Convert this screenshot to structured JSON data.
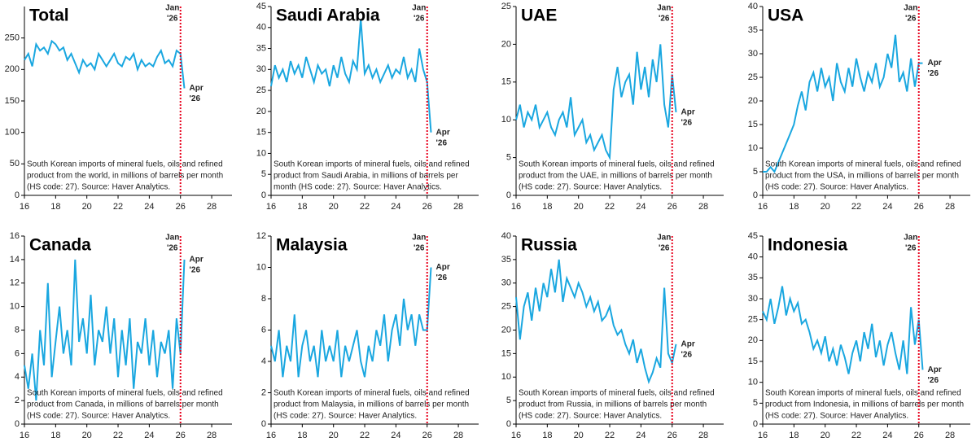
{
  "chart_data": [
    {
      "type": "line",
      "title": "Total",
      "note": [
        "South Korean imports of mineral fuels, oils and refined",
        "product from the world, in millions of barrels per month",
        "(HS code: 27). Source: Haver Analytics."
      ],
      "color": "#1aa7e0",
      "ylim": [
        0,
        300
      ],
      "yticks": [
        0,
        50,
        100,
        150,
        200,
        250
      ],
      "xlim": [
        16,
        29.3
      ],
      "xticks": [
        16,
        18,
        20,
        22,
        24,
        26,
        28
      ],
      "x": [
        16,
        16.25,
        16.5,
        16.75,
        17,
        17.25,
        17.5,
        17.75,
        18,
        18.25,
        18.5,
        18.75,
        19,
        19.25,
        19.5,
        19.75,
        20,
        20.25,
        20.5,
        20.75,
        21,
        21.25,
        21.5,
        21.75,
        22,
        22.25,
        22.5,
        22.75,
        23,
        23.25,
        23.5,
        23.75,
        24,
        24.25,
        24.5,
        24.75,
        25,
        25.25,
        25.5,
        25.75,
        26,
        26.25
      ],
      "values": [
        215,
        225,
        205,
        240,
        230,
        235,
        225,
        245,
        240,
        230,
        235,
        215,
        225,
        210,
        195,
        215,
        205,
        210,
        200,
        225,
        215,
        205,
        215,
        225,
        210,
        205,
        220,
        215,
        225,
        200,
        215,
        205,
        210,
        205,
        220,
        230,
        210,
        215,
        205,
        230,
        225,
        170
      ],
      "annotations": [
        {
          "lines": [
            "Jan",
            "'26"
          ],
          "x": 26,
          "color": "#e8001c"
        },
        {
          "lines": [
            "Apr",
            "'26"
          ],
          "x": 26.25,
          "color": "#1aa7e0"
        }
      ]
    },
    {
      "type": "line",
      "title": "Saudi Arabia",
      "note": [
        "South Korean imports of mineral fuels, oils and refined",
        "product from Saudi Arabia, in millions of barrels per",
        "month (HS code: 27). Source: Haver Analytics."
      ],
      "color": "#1aa7e0",
      "ylim": [
        0,
        45
      ],
      "yticks": [
        0,
        5,
        10,
        15,
        20,
        25,
        30,
        35,
        40,
        45
      ],
      "xlim": [
        16,
        29.3
      ],
      "xticks": [
        16,
        18,
        20,
        22,
        24,
        26,
        28
      ],
      "x": [
        16,
        16.25,
        16.5,
        16.75,
        17,
        17.25,
        17.5,
        17.75,
        18,
        18.25,
        18.5,
        18.75,
        19,
        19.25,
        19.5,
        19.75,
        20,
        20.25,
        20.5,
        20.75,
        21,
        21.25,
        21.5,
        21.75,
        22,
        22.25,
        22.5,
        22.75,
        23,
        23.25,
        23.5,
        23.75,
        24,
        24.25,
        24.5,
        24.75,
        25,
        25.25,
        25.5,
        25.75,
        26,
        26.25
      ],
      "values": [
        26,
        31,
        28,
        30,
        27,
        32,
        29,
        31,
        28,
        33,
        30,
        27,
        31,
        29,
        30,
        26,
        31,
        28,
        33,
        29,
        27,
        32,
        30,
        42,
        29,
        31,
        28,
        30,
        27,
        29,
        31,
        28,
        30,
        29,
        33,
        28,
        30,
        27,
        35,
        30,
        27,
        15
      ],
      "annotations": [
        {
          "lines": [
            "Jan",
            "'26"
          ],
          "x": 26,
          "color": "#e8001c"
        },
        {
          "lines": [
            "Apr",
            "'26"
          ],
          "x": 26.25,
          "color": "#1aa7e0"
        }
      ]
    },
    {
      "type": "line",
      "title": "UAE",
      "note": [
        "South Korean imports of mineral fuels, oils and refined",
        "product from the UAE, in millions of barrels per month",
        "(HS code: 27). Source: Haver Analytics."
      ],
      "color": "#1aa7e0",
      "ylim": [
        0,
        25
      ],
      "yticks": [
        0,
        5,
        10,
        15,
        20,
        25
      ],
      "xlim": [
        16,
        29.3
      ],
      "xticks": [
        16,
        18,
        20,
        22,
        24,
        26,
        28
      ],
      "x": [
        16,
        16.25,
        16.5,
        16.75,
        17,
        17.25,
        17.5,
        17.75,
        18,
        18.25,
        18.5,
        18.75,
        19,
        19.25,
        19.5,
        19.75,
        20,
        20.25,
        20.5,
        20.75,
        21,
        21.25,
        21.5,
        21.75,
        22,
        22.25,
        22.5,
        22.75,
        23,
        23.25,
        23.5,
        23.75,
        24,
        24.25,
        24.5,
        24.75,
        25,
        25.25,
        25.5,
        25.75,
        26,
        26.25
      ],
      "values": [
        10,
        12,
        9,
        11,
        10,
        12,
        9,
        10,
        11,
        9,
        8,
        10,
        11,
        9,
        13,
        8,
        9,
        10,
        7,
        8,
        6,
        7,
        8,
        6,
        5,
        14,
        17,
        13,
        15,
        16,
        12,
        19,
        14,
        17,
        13,
        18,
        15,
        20,
        12,
        9,
        16,
        11
      ],
      "annotations": [
        {
          "lines": [
            "Jan",
            "'26"
          ],
          "x": 26,
          "color": "#e8001c"
        },
        {
          "lines": [
            "Apr",
            "'26"
          ],
          "x": 26.25,
          "color": "#1aa7e0"
        }
      ]
    },
    {
      "type": "line",
      "title": "USA",
      "note": [
        "South Korean imports of mineral fuels, oils and refined",
        "product from the USA, in millions of barrels per month",
        "(HS code: 27). Source: Haver Analytics."
      ],
      "color": "#1aa7e0",
      "ylim": [
        0,
        40
      ],
      "yticks": [
        0,
        5,
        10,
        15,
        20,
        25,
        30,
        35,
        40
      ],
      "xlim": [
        16,
        29.3
      ],
      "xticks": [
        16,
        18,
        20,
        22,
        24,
        26,
        28
      ],
      "x": [
        16,
        16.25,
        16.5,
        16.75,
        17,
        17.25,
        17.5,
        17.75,
        18,
        18.25,
        18.5,
        18.75,
        19,
        19.25,
        19.5,
        19.75,
        20,
        20.25,
        20.5,
        20.75,
        21,
        21.25,
        21.5,
        21.75,
        22,
        22.25,
        22.5,
        22.75,
        23,
        23.25,
        23.5,
        23.75,
        24,
        24.25,
        24.5,
        24.75,
        25,
        25.25,
        25.5,
        25.75,
        26,
        26.25
      ],
      "values": [
        5,
        5,
        6,
        5,
        7,
        9,
        11,
        13,
        15,
        19,
        22,
        18,
        24,
        26,
        22,
        27,
        23,
        25,
        20,
        28,
        24,
        22,
        27,
        23,
        29,
        25,
        22,
        26,
        24,
        28,
        23,
        25,
        30,
        27,
        34,
        24,
        26,
        22,
        29,
        23,
        28,
        28
      ],
      "annotations": [
        {
          "lines": [
            "Jan",
            "'26"
          ],
          "x": 26,
          "color": "#e8001c"
        },
        {
          "lines": [
            "Apr",
            "'26"
          ],
          "x": 26.25,
          "color": "#1aa7e0"
        }
      ]
    },
    {
      "type": "line",
      "title": "Canada",
      "note": [
        "South Korean imports of mineral fuels, oils and refined",
        "product from Canada, in millions of barrels per month",
        "(HS code: 27). Source: Haver Analytics."
      ],
      "color": "#1aa7e0",
      "ylim": [
        0,
        16
      ],
      "yticks": [
        0,
        2,
        4,
        6,
        8,
        10,
        12,
        14,
        16
      ],
      "xlim": [
        16,
        29.3
      ],
      "xticks": [
        16,
        18,
        20,
        22,
        24,
        26,
        28
      ],
      "x": [
        16,
        16.25,
        16.5,
        16.75,
        17,
        17.25,
        17.5,
        17.75,
        18,
        18.25,
        18.5,
        18.75,
        19,
        19.25,
        19.5,
        19.75,
        20,
        20.25,
        20.5,
        20.75,
        21,
        21.25,
        21.5,
        21.75,
        22,
        22.25,
        22.5,
        22.75,
        23,
        23.25,
        23.5,
        23.75,
        24,
        24.25,
        24.5,
        24.75,
        25,
        25.25,
        25.5,
        25.75,
        26,
        26.25
      ],
      "values": [
        5,
        3,
        6,
        2,
        8,
        5,
        12,
        4,
        7,
        10,
        6,
        8,
        5,
        14,
        7,
        9,
        6,
        11,
        5,
        8,
        7,
        10,
        6,
        9,
        4,
        8,
        5,
        9,
        3,
        7,
        6,
        9,
        5,
        8,
        4,
        7,
        6,
        8,
        3,
        9,
        6,
        14
      ],
      "annotations": [
        {
          "lines": [
            "Jan",
            "'26"
          ],
          "x": 26,
          "color": "#e8001c"
        },
        {
          "lines": [
            "Apr",
            "'26"
          ],
          "x": 26.25,
          "color": "#1aa7e0"
        }
      ]
    },
    {
      "type": "line",
      "title": "Malaysia",
      "note": [
        "South Korean imports of mineral fuels, oils and refined",
        "product from Malaysia, in millions of barrels per month",
        "(HS code: 27). Source: Haver Analytics."
      ],
      "color": "#1aa7e0",
      "ylim": [
        0,
        12
      ],
      "yticks": [
        0,
        2,
        4,
        6,
        8,
        10,
        12
      ],
      "xlim": [
        16,
        29.3
      ],
      "xticks": [
        16,
        18,
        20,
        22,
        24,
        26,
        28
      ],
      "x": [
        16,
        16.25,
        16.5,
        16.75,
        17,
        17.25,
        17.5,
        17.75,
        18,
        18.25,
        18.5,
        18.75,
        19,
        19.25,
        19.5,
        19.75,
        20,
        20.25,
        20.5,
        20.75,
        21,
        21.25,
        21.5,
        21.75,
        22,
        22.25,
        22.5,
        22.75,
        23,
        23.25,
        23.5,
        23.75,
        24,
        24.25,
        24.5,
        24.75,
        25,
        25.25,
        25.5,
        25.75,
        26,
        26.25
      ],
      "values": [
        5,
        4,
        6,
        3,
        5,
        4,
        7,
        3,
        5,
        6,
        4,
        5,
        3,
        6,
        4,
        5,
        4,
        6,
        3,
        5,
        4,
        5,
        6,
        4,
        3,
        5,
        4,
        6,
        5,
        7,
        4,
        6,
        7,
        5,
        8,
        6,
        7,
        5,
        7,
        6,
        6,
        10
      ],
      "annotations": [
        {
          "lines": [
            "Jan",
            "'26"
          ],
          "x": 26,
          "color": "#e8001c"
        },
        {
          "lines": [
            "Apr",
            "'26"
          ],
          "x": 26.25,
          "color": "#1aa7e0"
        }
      ]
    },
    {
      "type": "line",
      "title": "Russia",
      "note": [
        "South Korean imports of mineral fuels, oils and refined",
        "product from Russia, in millions of barrels per month",
        "(HS code: 27). Source: Haver Analytics."
      ],
      "color": "#1aa7e0",
      "ylim": [
        0,
        40
      ],
      "yticks": [
        0,
        5,
        10,
        15,
        20,
        25,
        30,
        35,
        40
      ],
      "xlim": [
        16,
        29.3
      ],
      "xticks": [
        16,
        18,
        20,
        22,
        24,
        26,
        28
      ],
      "x": [
        16,
        16.25,
        16.5,
        16.75,
        17,
        17.25,
        17.5,
        17.75,
        18,
        18.25,
        18.5,
        18.75,
        19,
        19.25,
        19.5,
        19.75,
        20,
        20.25,
        20.5,
        20.75,
        21,
        21.25,
        21.5,
        21.75,
        22,
        22.25,
        22.5,
        22.75,
        23,
        23.25,
        23.5,
        23.75,
        24,
        24.25,
        24.5,
        24.75,
        25,
        25.25,
        25.5,
        25.75,
        26,
        26.25
      ],
      "values": [
        27,
        18,
        25,
        28,
        22,
        29,
        24,
        30,
        27,
        33,
        28,
        35,
        26,
        31,
        29,
        27,
        30,
        28,
        25,
        27,
        24,
        26,
        22,
        23,
        25,
        21,
        19,
        20,
        17,
        15,
        18,
        13,
        16,
        12,
        9,
        11,
        14,
        12,
        29,
        15,
        13,
        17
      ],
      "annotations": [
        {
          "lines": [
            "Jan",
            "'26"
          ],
          "x": 26,
          "color": "#e8001c"
        },
        {
          "lines": [
            "Apr",
            "'26"
          ],
          "x": 26.25,
          "color": "#1aa7e0"
        }
      ]
    },
    {
      "type": "line",
      "title": "Indonesia",
      "note": [
        "South Korean imports of mineral fuels, oils and refined",
        "product from Indonesia, in millions of barrels per month",
        "(HS code: 27). Source: Haver Analytics."
      ],
      "color": "#1aa7e0",
      "ylim": [
        0,
        45
      ],
      "yticks": [
        0,
        5,
        10,
        15,
        20,
        25,
        30,
        35,
        40,
        45
      ],
      "xlim": [
        16,
        29.3
      ],
      "xticks": [
        16,
        18,
        20,
        22,
        24,
        26,
        28
      ],
      "x": [
        16,
        16.25,
        16.5,
        16.75,
        17,
        17.25,
        17.5,
        17.75,
        18,
        18.25,
        18.5,
        18.75,
        19,
        19.25,
        19.5,
        19.75,
        20,
        20.25,
        20.5,
        20.75,
        21,
        21.25,
        21.5,
        21.75,
        22,
        22.25,
        22.5,
        22.75,
        23,
        23.25,
        23.5,
        23.75,
        24,
        24.25,
        24.5,
        24.75,
        25,
        25.25,
        25.5,
        25.75,
        26,
        26.25
      ],
      "values": [
        27,
        25,
        30,
        24,
        28,
        33,
        26,
        30,
        27,
        29,
        24,
        25,
        22,
        18,
        20,
        17,
        21,
        15,
        18,
        14,
        19,
        16,
        12,
        17,
        20,
        15,
        22,
        18,
        24,
        16,
        20,
        14,
        19,
        22,
        17,
        13,
        20,
        12,
        28,
        19,
        25,
        13
      ],
      "annotations": [
        {
          "lines": [
            "Jan",
            "'26"
          ],
          "x": 26,
          "color": "#e8001c"
        },
        {
          "lines": [
            "Apr",
            "'26"
          ],
          "x": 26.25,
          "color": "#1aa7e0"
        }
      ]
    }
  ]
}
